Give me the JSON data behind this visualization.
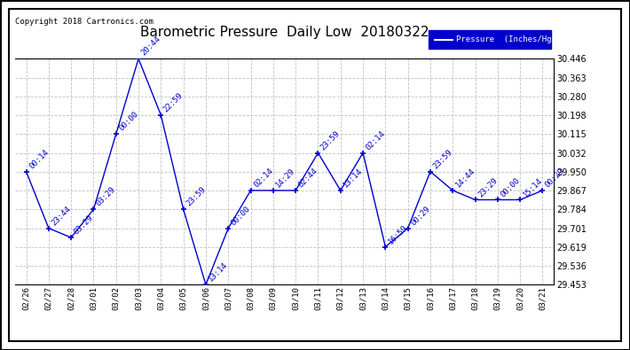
{
  "title": "Barometric Pressure  Daily Low  20180322",
  "copyright": "Copyright 2018 Cartronics.com",
  "legend_label": "Pressure  (Inches/Hg)",
  "x_labels": [
    "02/26",
    "02/27",
    "02/28",
    "03/01",
    "03/02",
    "03/03",
    "03/04",
    "03/05",
    "03/06",
    "03/07",
    "03/08",
    "03/09",
    "03/10",
    "03/11",
    "03/12",
    "03/13",
    "03/14",
    "03/15",
    "03/16",
    "03/17",
    "03/18",
    "03/19",
    "03/20",
    "03/21"
  ],
  "y_values": [
    29.95,
    29.701,
    29.66,
    29.784,
    30.115,
    30.446,
    30.198,
    29.784,
    29.453,
    29.701,
    29.867,
    29.867,
    29.867,
    30.032,
    29.867,
    30.032,
    29.619,
    29.701,
    29.95,
    29.867,
    29.826,
    29.826,
    29.826,
    29.867
  ],
  "annotations": [
    "00:14",
    "23:44",
    "03:29",
    "03:29",
    "00:00",
    "20:44",
    "22:59",
    "23:59",
    "13:14",
    "00:00",
    "02:14",
    "14:29",
    "02:44",
    "23:59",
    "13:14",
    "02:14",
    "16:59",
    "00:29",
    "23:59",
    "14:44",
    "23:29",
    "00:00",
    "15:14",
    "00:29"
  ],
  "ylim_min": 29.453,
  "ylim_max": 30.446,
  "y_ticks": [
    29.453,
    29.536,
    29.619,
    29.701,
    29.784,
    29.867,
    29.95,
    30.032,
    30.115,
    30.198,
    30.28,
    30.363,
    30.446
  ],
  "line_color": "#0000cc",
  "marker_color": "#0000cc",
  "bg_color": "#ffffff",
  "grid_color": "#c0c0c0",
  "title_fontsize": 11,
  "annotation_fontsize": 6.5,
  "copyright_fontsize": 6.5,
  "legend_bg": "#0000cc",
  "legend_fg": "#ffffff"
}
